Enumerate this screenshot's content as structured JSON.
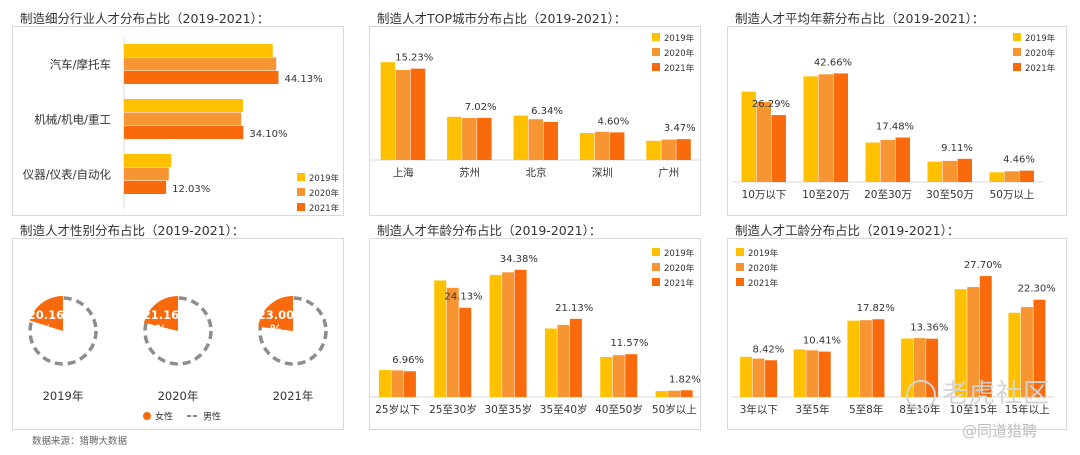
{
  "colors": {
    "y2019": "#FFC000",
    "y2020": "#F79533",
    "y2021": "#F96A0C",
    "female": "#F96A0C",
    "male": "#8C8C8C"
  },
  "years": [
    "2019年",
    "2020年",
    "2021年"
  ],
  "chart_data": [
    {
      "id": "industry",
      "type": "bar",
      "orientation": "horizontal",
      "title": "制造细分行业人才分布占比（2019-2021）：",
      "categories": [
        "汽车/摩托车",
        "机械/机电/重工",
        "仪器/仪表/自动化"
      ],
      "series": [
        {
          "name": "2019年",
          "values": [
            42.5,
            34.0,
            13.5
          ]
        },
        {
          "name": "2020年",
          "values": [
            43.5,
            33.5,
            12.8
          ]
        },
        {
          "name": "2021年",
          "values": [
            44.13,
            34.1,
            12.03
          ]
        }
      ],
      "labels": [
        "44.13%",
        "34.10%",
        "12.03%"
      ],
      "xlim": [
        0,
        60
      ]
    },
    {
      "id": "city",
      "type": "bar",
      "title": "制造人才TOP城市分布占比（2019-2021）：",
      "categories": [
        "上海",
        "苏州",
        "北京",
        "深圳",
        "广州"
      ],
      "series": [
        {
          "name": "2019年",
          "values": [
            16.3,
            7.2,
            7.4,
            4.5,
            3.2
          ]
        },
        {
          "name": "2020年",
          "values": [
            15.0,
            7.0,
            6.8,
            4.7,
            3.4
          ]
        },
        {
          "name": "2021年",
          "values": [
            15.23,
            7.02,
            6.34,
            4.6,
            3.47
          ]
        }
      ],
      "labels": [
        "15.23%",
        "7.02%",
        "6.34%",
        "4.60%",
        "3.47%"
      ],
      "ylim": [
        0,
        20
      ]
    },
    {
      "id": "salary",
      "type": "bar",
      "title": "制造人才平均年薪分布占比（2019-2021）：",
      "categories": [
        "10万以下",
        "10至20万",
        "20至30万",
        "30至50万",
        "50万以上"
      ],
      "series": [
        {
          "name": "2019年",
          "values": [
            35.5,
            41.5,
            15.5,
            8.0,
            3.8
          ]
        },
        {
          "name": "2020年",
          "values": [
            31.5,
            42.3,
            16.5,
            8.3,
            4.2
          ]
        },
        {
          "name": "2021年",
          "values": [
            26.29,
            42.66,
            17.48,
            9.11,
            4.46
          ]
        }
      ],
      "labels": [
        "26.29%",
        "42.66%",
        "17.48%",
        "9.11%",
        "4.46%"
      ],
      "ylim": [
        0,
        55
      ]
    },
    {
      "id": "gender",
      "type": "pie",
      "title": "制造人才性别分布占比（2019-2021）：",
      "categories": [
        "2019年",
        "2020年",
        "2021年"
      ],
      "female": [
        20.16,
        21.16,
        23.0
      ],
      "male": [
        79.84,
        78.84,
        77.0
      ],
      "labels": [
        "20.16%",
        "21.16%",
        "23.00%"
      ],
      "legend": [
        "女性",
        "男性"
      ]
    },
    {
      "id": "age",
      "type": "bar",
      "title": "制造人才年龄分布占比（2019-2021）：",
      "categories": [
        "25岁以下",
        "25至30岁",
        "30至35岁",
        "35至40岁",
        "40至50岁",
        "50岁以上"
      ],
      "series": [
        {
          "name": "2019年",
          "values": [
            7.3,
            31.5,
            33.0,
            18.5,
            10.8,
            1.6
          ]
        },
        {
          "name": "2020年",
          "values": [
            7.2,
            29.5,
            33.7,
            19.5,
            11.3,
            1.7
          ]
        },
        {
          "name": "2021年",
          "values": [
            6.96,
            24.13,
            34.38,
            21.13,
            11.57,
            1.82
          ]
        }
      ],
      "labels": [
        "6.96%",
        "24.13%",
        "34.38%",
        "21.13%",
        "11.57%",
        "1.82%"
      ],
      "ylim": [
        0,
        40
      ]
    },
    {
      "id": "tenure",
      "type": "bar",
      "title": "制造人才工龄分布占比（2019-2021）：",
      "categories": [
        "3年以下",
        "3至5年",
        "5至8年",
        "8至10年",
        "10至15年",
        "15年以上"
      ],
      "series": [
        {
          "name": "2019年",
          "values": [
            9.2,
            10.9,
            17.5,
            13.4,
            24.7,
            19.3
          ]
        },
        {
          "name": "2020年",
          "values": [
            8.8,
            10.7,
            17.6,
            13.5,
            25.2,
            20.6
          ]
        },
        {
          "name": "2021年",
          "values": [
            8.42,
            10.41,
            17.82,
            13.36,
            27.7,
            22.3
          ]
        }
      ],
      "labels": [
        "8.42%",
        "10.41%",
        "17.82%",
        "13.36%",
        "27.70%",
        "22.30%"
      ],
      "ylim": [
        0,
        33
      ]
    }
  ],
  "footer": {
    "source": "数据来源：猎聘大数据"
  },
  "watermark": {
    "main": "老虎社区",
    "sub": "@同道猎聘"
  }
}
